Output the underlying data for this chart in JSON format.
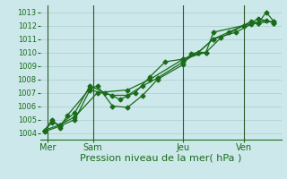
{
  "background_color": "#cce8ea",
  "grid_color": "#aacccc",
  "line_color": "#1a6b1a",
  "marker_color": "#1a6b1a",
  "xlabel_text": "Pression niveau de la mer( hPa )",
  "ylim": [
    1003.5,
    1013.5
  ],
  "yticks": [
    1004,
    1005,
    1006,
    1007,
    1008,
    1009,
    1010,
    1011,
    1012,
    1013
  ],
  "xtick_labels": [
    "Mer",
    "Sam",
    "Jeu",
    "Ven"
  ],
  "xtick_positions": [
    0.5,
    3.5,
    9.5,
    13.5
  ],
  "xlim": [
    0,
    16
  ],
  "series1_x": [
    0.3,
    0.8,
    1.3,
    1.8,
    3.3,
    3.8,
    4.8,
    5.8,
    6.8,
    7.8,
    9.5,
    10.0,
    10.5,
    11.0,
    11.5,
    13.5,
    14.0,
    14.5,
    15.0,
    15.5
  ],
  "series1_y": [
    1004.2,
    1005.0,
    1004.4,
    1005.3,
    1007.3,
    1007.5,
    1006.0,
    1005.9,
    1006.8,
    1008.0,
    1009.1,
    1009.9,
    1010.0,
    1010.0,
    1011.5,
    1012.0,
    1012.3,
    1012.2,
    1013.0,
    1012.3
  ],
  "series2_x": [
    0.3,
    0.8,
    1.3,
    2.3,
    3.3,
    4.3,
    5.3,
    6.3,
    7.3,
    8.3,
    9.5,
    10.5,
    11.5,
    12.5,
    13.5,
    14.5,
    15.5
  ],
  "series2_y": [
    1004.2,
    1004.8,
    1004.6,
    1005.5,
    1007.5,
    1007.0,
    1006.5,
    1007.0,
    1008.2,
    1009.3,
    1009.5,
    1010.0,
    1011.0,
    1011.5,
    1012.0,
    1012.2,
    1012.3
  ],
  "series3_x": [
    0.3,
    1.3,
    2.3,
    3.3,
    4.8,
    5.8,
    6.8,
    7.8,
    9.5,
    10.5,
    11.5,
    13.0,
    14.0,
    15.0,
    15.5
  ],
  "series3_y": [
    1004.1,
    1004.5,
    1005.0,
    1007.2,
    1006.8,
    1006.8,
    1007.5,
    1008.1,
    1009.3,
    1010.0,
    1011.0,
    1011.5,
    1012.1,
    1012.4,
    1012.2
  ],
  "series4_x": [
    0.3,
    1.3,
    2.3,
    3.8,
    5.8,
    7.3,
    9.5,
    11.0,
    12.0,
    13.5,
    14.5,
    15.5
  ],
  "series4_y": [
    1004.2,
    1004.6,
    1005.2,
    1007.0,
    1007.2,
    1008.0,
    1009.5,
    1010.0,
    1011.1,
    1012.0,
    1012.5,
    1012.2
  ],
  "vline_positions": [
    0.5,
    3.5,
    9.5,
    13.5
  ],
  "vline_color": "#2a5a2a",
  "ytick_fontsize": 6,
  "xtick_fontsize": 7,
  "xlabel_fontsize": 8,
  "linewidth": 0.9,
  "markersize": 2.5
}
